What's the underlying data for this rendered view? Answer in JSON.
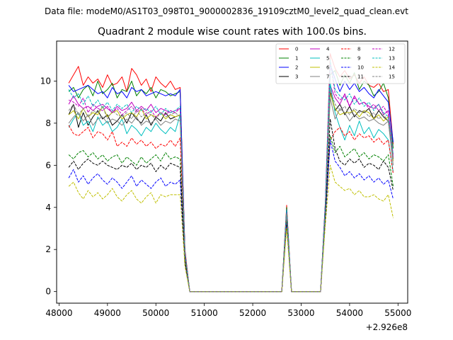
{
  "page": {
    "suptitle": "Data file: modeM0/AS1T03_098T01_9000002836_19109cztM0_level2_quad_clean.evt"
  },
  "chart_data": {
    "type": "line",
    "title": "Quadrant 2 module wise count rates with 100.0s bins.",
    "xlabel": "",
    "ylabel": "",
    "x_offset_label": "+2.926e8",
    "xlim": [
      47950,
      55200
    ],
    "ylim": [
      -0.55,
      11.9
    ],
    "xticks": [
      48000,
      49000,
      50000,
      51000,
      52000,
      53000,
      54000,
      55000
    ],
    "xtick_labels": [
      "48000",
      "49000",
      "50000",
      "51000",
      "52000",
      "53000",
      "54000",
      "55000"
    ],
    "yticks": [
      0,
      2,
      4,
      6,
      8,
      10
    ],
    "ytick_labels": [
      "0",
      "2",
      "4",
      "6",
      "8",
      "10"
    ],
    "grid": false,
    "legend_position": "top-right",
    "x": [
      48200,
      48300,
      48400,
      48500,
      48600,
      48700,
      48800,
      48900,
      49000,
      49100,
      49200,
      49300,
      49400,
      49500,
      49600,
      49700,
      49800,
      49900,
      50000,
      50100,
      50200,
      50300,
      50400,
      50500,
      50600,
      50700,
      50800,
      50900,
      51000,
      51100,
      51200,
      51300,
      51400,
      51500,
      51600,
      51700,
      51800,
      51900,
      52000,
      52100,
      52200,
      52300,
      52400,
      52500,
      52600,
      52700,
      52800,
      52900,
      53000,
      53100,
      53200,
      53300,
      53400,
      53500,
      53600,
      53700,
      53800,
      53900,
      54000,
      54100,
      54200,
      54300,
      54400,
      54500,
      54600,
      54700,
      54800,
      54900
    ],
    "series": [
      {
        "name": "0",
        "color": "#ff0000",
        "style": "solid",
        "values": [
          9.9,
          10.3,
          10.7,
          9.8,
          10.2,
          9.9,
          10.1,
          9.7,
          10.3,
          9.8,
          9.9,
          10.2,
          9.5,
          10.6,
          10.3,
          9.8,
          10.1,
          9.5,
          10.2,
          9.9,
          9.7,
          10,
          9.6,
          9.7,
          2,
          0,
          0,
          0,
          0,
          0,
          0,
          0,
          0,
          0,
          0,
          0,
          0,
          0,
          0,
          0,
          0,
          0,
          0,
          0,
          0,
          4.1,
          0,
          0,
          0,
          0,
          0,
          0,
          0,
          4.3,
          11.3,
          10.6,
          10.2,
          10.5,
          10.1,
          10.3,
          9.9,
          10.2,
          9.8,
          9.7,
          9.9,
          9.5,
          9.6,
          7
        ]
      },
      {
        "name": "1",
        "color": "#008000",
        "style": "solid",
        "values": [
          9.5,
          9.7,
          9.2,
          9.6,
          9.8,
          9.3,
          10,
          9.4,
          9.6,
          9.9,
          9.2,
          9.6,
          9.5,
          10,
          9.3,
          9.6,
          9.4,
          9.7,
          9.2,
          9.6,
          9.5,
          9.3,
          9.4,
          9.5,
          1.9,
          0,
          0,
          0,
          0,
          0,
          0,
          0,
          0,
          0,
          0,
          0,
          0,
          0,
          0,
          0,
          0,
          0,
          0,
          0,
          0,
          4,
          0,
          0,
          0,
          0,
          0,
          0,
          0,
          4.2,
          10.3,
          10.5,
          9.8,
          10.3,
          9.9,
          10.4,
          9.6,
          10,
          9.8,
          9.3,
          9.5,
          9.9,
          9.2,
          6.8
        ]
      },
      {
        "name": "2",
        "color": "#0000ff",
        "style": "solid",
        "values": [
          9.8,
          9.5,
          9.6,
          9.7,
          9.8,
          9.6,
          9.4,
          9.5,
          9.2,
          9.7,
          9.4,
          9.5,
          9.2,
          9.7,
          9.5,
          9.6,
          9.3,
          9.4,
          9.5,
          9.4,
          9.3,
          9.4,
          9.3,
          9.6,
          1.9,
          0,
          0,
          0,
          0,
          0,
          0,
          0,
          0,
          0,
          0,
          0,
          0,
          0,
          0,
          0,
          0,
          0,
          0,
          0,
          0,
          3.9,
          0,
          0,
          0,
          0,
          0,
          0,
          0,
          4.2,
          10.8,
          10.1,
          9.5,
          10,
          9.6,
          9.9,
          9.5,
          9.7,
          9.4,
          9.2,
          9.6,
          9.3,
          9,
          7.1
        ]
      },
      {
        "name": "3",
        "color": "#000000",
        "style": "solid",
        "values": [
          8.4,
          8.9,
          7.8,
          8.5,
          7.9,
          8.3,
          8.6,
          8.2,
          8.4,
          7.9,
          8.1,
          8.4,
          8,
          8.5,
          8.2,
          8,
          8.4,
          7.9,
          8.3,
          8.1,
          8.5,
          8.2,
          8.3,
          8.4,
          1.8,
          0,
          0,
          0,
          0,
          0,
          0,
          0,
          0,
          0,
          0,
          0,
          0,
          0,
          0,
          0,
          0,
          0,
          0,
          0,
          0,
          3.8,
          0,
          0,
          0,
          0,
          0,
          0,
          0,
          4,
          9.5,
          8.6,
          8.9,
          8.4,
          8.8,
          8.3,
          8.6,
          8.5,
          8.7,
          8.2,
          8.6,
          8.3,
          8.1,
          6.3
        ]
      },
      {
        "name": "4",
        "color": "#bf00bf",
        "style": "solid",
        "values": [
          8.9,
          9.3,
          8.9,
          8.7,
          8.8,
          8.6,
          8.8,
          8.9,
          8.7,
          8.5,
          8.8,
          8.6,
          8.7,
          9,
          8.6,
          8.8,
          8.6,
          8.9,
          8.5,
          8.7,
          8.6,
          8.5,
          8.6,
          8.7,
          1.8,
          0,
          0,
          0,
          0,
          0,
          0,
          0,
          0,
          0,
          0,
          0,
          0,
          0,
          0,
          0,
          0,
          0,
          0,
          0,
          0,
          3.8,
          0,
          0,
          0,
          0,
          0,
          0,
          0,
          4,
          9.8,
          9.2,
          8.9,
          9.4,
          8.8,
          9.3,
          8.9,
          9,
          8.8,
          8.7,
          8.9,
          8.4,
          8.6,
          6.5
        ]
      },
      {
        "name": "5",
        "color": "#00bfbf",
        "style": "solid",
        "values": [
          7.8,
          8.2,
          8.5,
          7.9,
          8.1,
          7.6,
          8.3,
          7.9,
          8.1,
          7.6,
          7.8,
          8.2,
          7.5,
          7.9,
          7.7,
          7.4,
          7.8,
          7.6,
          8,
          7.7,
          7.5,
          7.8,
          7.6,
          8.4,
          1.7,
          0,
          0,
          0,
          0,
          0,
          0,
          0,
          0,
          0,
          0,
          0,
          0,
          0,
          0,
          0,
          0,
          0,
          0,
          0,
          0,
          3.6,
          0,
          0,
          0,
          0,
          0,
          0,
          0,
          3.8,
          9.9,
          8.5,
          7.8,
          7.2,
          7.9,
          7.4,
          8.1,
          7.5,
          7.8,
          7.3,
          7.7,
          7.5,
          7.2,
          5.7
        ]
      },
      {
        "name": "6",
        "color": "#bfbf00",
        "style": "solid",
        "values": [
          8.4,
          8.6,
          8.2,
          8.7,
          8.3,
          8.5,
          8.4,
          8.8,
          8.3,
          8.5,
          8.6,
          8.2,
          8.4,
          8.5,
          8.3,
          8.7,
          8.2,
          8.4,
          8.3,
          8.5,
          8.2,
          8.4,
          8.3,
          8.4,
          1.8,
          0,
          0,
          0,
          0,
          0,
          0,
          0,
          0,
          0,
          0,
          0,
          0,
          0,
          0,
          0,
          0,
          0,
          0,
          0,
          0,
          3.7,
          0,
          0,
          0,
          0,
          0,
          0,
          0,
          3.9,
          9.4,
          8.7,
          8.4,
          8.5,
          8.5,
          8.6,
          8.3,
          8.6,
          8.5,
          8.2,
          8.4,
          8.1,
          8.3,
          6.2
        ]
      },
      {
        "name": "7",
        "color": "#808080",
        "style": "solid",
        "values": [
          8,
          8.3,
          8.5,
          8.1,
          8.4,
          7.9,
          8.2,
          8.3,
          8,
          8.2,
          8.1,
          7.9,
          8.2,
          8,
          8.3,
          7.9,
          8.1,
          8,
          8.2,
          7.9,
          8.1,
          8,
          8.2,
          8.1,
          1.7,
          0,
          0,
          0,
          0,
          0,
          0,
          0,
          0,
          0,
          0,
          0,
          0,
          0,
          0,
          0,
          0,
          0,
          0,
          0,
          0,
          3.6,
          0,
          0,
          0,
          0,
          0,
          0,
          0,
          3.9,
          9.2,
          8.2,
          8.7,
          8.5,
          8.1,
          8.4,
          8.2,
          8.3,
          8.1,
          8.2,
          8,
          7.9,
          8.1,
          6
        ]
      },
      {
        "name": "8",
        "color": "#ff0000",
        "style": "dashed",
        "values": [
          7.9,
          7.5,
          7.4,
          7.6,
          7.8,
          7.3,
          7.6,
          7.5,
          7.2,
          7.6,
          6.9,
          7.1,
          6.9,
          7.3,
          7,
          7.2,
          6.9,
          7.1,
          6.8,
          7,
          6.9,
          7.2,
          6.9,
          7.3,
          1.6,
          0,
          0,
          0,
          0,
          0,
          0,
          0,
          0,
          0,
          0,
          0,
          0,
          0,
          0,
          0,
          0,
          0,
          0,
          0,
          0,
          3.5,
          0,
          0,
          0,
          0,
          0,
          0,
          0,
          3.7,
          7.2,
          7.6,
          7.8,
          7.4,
          7.6,
          7.2,
          7.5,
          7.3,
          7.4,
          7.1,
          7.3,
          7,
          7.2,
          5.6
        ]
      },
      {
        "name": "9",
        "color": "#008000",
        "style": "dashed",
        "values": [
          6.5,
          6.3,
          6.6,
          6.7,
          6.4,
          6.6,
          6.3,
          6.5,
          6.2,
          6.4,
          6.5,
          6.1,
          6.4,
          6.2,
          6,
          6.4,
          6.1,
          6.3,
          6.5,
          6.2,
          6.6,
          6.3,
          6.4,
          6.3,
          1.5,
          0,
          0,
          0,
          0,
          0,
          0,
          0,
          0,
          0,
          0,
          0,
          0,
          0,
          0,
          0,
          0,
          0,
          0,
          0,
          0,
          3.4,
          0,
          0,
          0,
          0,
          0,
          0,
          0,
          3.6,
          7.4,
          6.6,
          6.9,
          6.4,
          6.6,
          6.8,
          6.4,
          6.6,
          6.3,
          6.5,
          6.4,
          6.2,
          6.5,
          5
        ]
      },
      {
        "name": "10",
        "color": "#0000ff",
        "style": "dashed",
        "values": [
          5.4,
          5.8,
          5.2,
          5.5,
          5.1,
          5.4,
          5.6,
          5.3,
          5.1,
          5.4,
          5.2,
          4.9,
          5.2,
          5.5,
          5,
          5.3,
          5.1,
          4.9,
          5.2,
          5.4,
          5,
          5.2,
          5.1,
          5.3,
          1.3,
          0,
          0,
          0,
          0,
          0,
          0,
          0,
          0,
          0,
          0,
          0,
          0,
          0,
          0,
          0,
          0,
          0,
          0,
          0,
          0,
          3.2,
          0,
          0,
          0,
          0,
          0,
          0,
          0,
          3.4,
          7.2,
          6.2,
          5.9,
          5.5,
          5.7,
          5.4,
          5.6,
          5.3,
          5.5,
          5.2,
          5.4,
          5.1,
          5.3,
          4.4
        ]
      },
      {
        "name": "11",
        "color": "#000000",
        "style": "dashed",
        "values": [
          5.9,
          6.2,
          5.8,
          6.1,
          6.3,
          6.1,
          6,
          6.2,
          6,
          5.9,
          5.8,
          6,
          5.9,
          6.1,
          5.8,
          6,
          5.9,
          6.1,
          5.7,
          6,
          5.8,
          6.1,
          6,
          5.9,
          1.4,
          0,
          0,
          0,
          0,
          0,
          0,
          0,
          0,
          0,
          0,
          0,
          0,
          0,
          0,
          0,
          0,
          0,
          0,
          0,
          0,
          3.3,
          0,
          0,
          0,
          0,
          0,
          0,
          0,
          3.5,
          8.2,
          6.8,
          6.2,
          6,
          6.3,
          6.1,
          6.3,
          5.9,
          6.1,
          6,
          5.8,
          6.2,
          5.9,
          4.8
        ]
      },
      {
        "name": "12",
        "color": "#bf00bf",
        "style": "dashed",
        "values": [
          9.1,
          9,
          8.8,
          9.2,
          8.5,
          8.9,
          8.7,
          8.6,
          8.8,
          8.5,
          8.7,
          8.4,
          8.6,
          8.8,
          8.5,
          8.7,
          8.4,
          8.6,
          8.3,
          8.5,
          8.4,
          8.6,
          8.5,
          8.7,
          1.8,
          0,
          0,
          0,
          0,
          0,
          0,
          0,
          0,
          0,
          0,
          0,
          0,
          0,
          0,
          0,
          0,
          0,
          0,
          0,
          0,
          3.8,
          0,
          0,
          0,
          0,
          0,
          0,
          0,
          4,
          10.9,
          9.4,
          9.1,
          9.3,
          8.8,
          9.2,
          8.9,
          9,
          8.7,
          8.9,
          8.6,
          8.8,
          8.4,
          6.4
        ]
      },
      {
        "name": "13",
        "color": "#00bfbf",
        "style": "dashed",
        "values": [
          9.6,
          9.2,
          9.4,
          8.9,
          9.3,
          8.8,
          9.1,
          8.7,
          9,
          8.6,
          8.9,
          8.7,
          8.9,
          8.5,
          8.8,
          8.6,
          8.7,
          8.5,
          8.8,
          8.4,
          8.7,
          8.5,
          8.6,
          8.8,
          1.8,
          0,
          0,
          0,
          0,
          0,
          0,
          0,
          0,
          0,
          0,
          0,
          0,
          0,
          0,
          0,
          0,
          0,
          0,
          0,
          0,
          3.9,
          0,
          0,
          0,
          0,
          0,
          0,
          0,
          4.1,
          11,
          9.6,
          9.3,
          9.1,
          9.4,
          8.9,
          9.2,
          8.8,
          9,
          8.6,
          8.9,
          8.5,
          8.3,
          6.5
        ]
      },
      {
        "name": "14",
        "color": "#bfbf00",
        "style": "dashed",
        "values": [
          5,
          5.2,
          4.7,
          4.4,
          4.8,
          4.5,
          4.7,
          4.4,
          4.6,
          4.9,
          4.5,
          4.3,
          4.6,
          4.8,
          4.4,
          4.2,
          4.5,
          4.7,
          4.2,
          4.6,
          4.5,
          4.6,
          4.6,
          4.6,
          1.2,
          0,
          0,
          0,
          0,
          0,
          0,
          0,
          0,
          0,
          0,
          0,
          0,
          0,
          0,
          0,
          0,
          0,
          0,
          0,
          0,
          3,
          0,
          0,
          0,
          0,
          0,
          0,
          0,
          3.2,
          6,
          5.2,
          5,
          4.8,
          4.9,
          4.6,
          4.8,
          4.5,
          4.5,
          4.6,
          4.4,
          4.3,
          4.6,
          3.5
        ]
      },
      {
        "name": "15",
        "color": "#808080",
        "style": "dashed",
        "values": [
          8.6,
          8.9,
          8.4,
          8.7,
          8.3,
          8.6,
          8.5,
          8.8,
          8.2,
          8.6,
          8.4,
          8.3,
          8.5,
          8.2,
          8.6,
          8.3,
          8.5,
          8.4,
          8.2,
          8.5,
          8.3,
          8.4,
          8.5,
          8.3,
          1.8,
          0,
          0,
          0,
          0,
          0,
          0,
          0,
          0,
          0,
          0,
          0,
          0,
          0,
          0,
          0,
          0,
          0,
          0,
          0,
          0,
          3.7,
          0,
          0,
          0,
          0,
          0,
          0,
          0,
          3.9,
          9.6,
          8.9,
          8.6,
          8.8,
          8.4,
          8.7,
          8.5,
          8.6,
          8.3,
          8.5,
          8.2,
          8.4,
          8.1,
          6.3
        ]
      }
    ]
  }
}
